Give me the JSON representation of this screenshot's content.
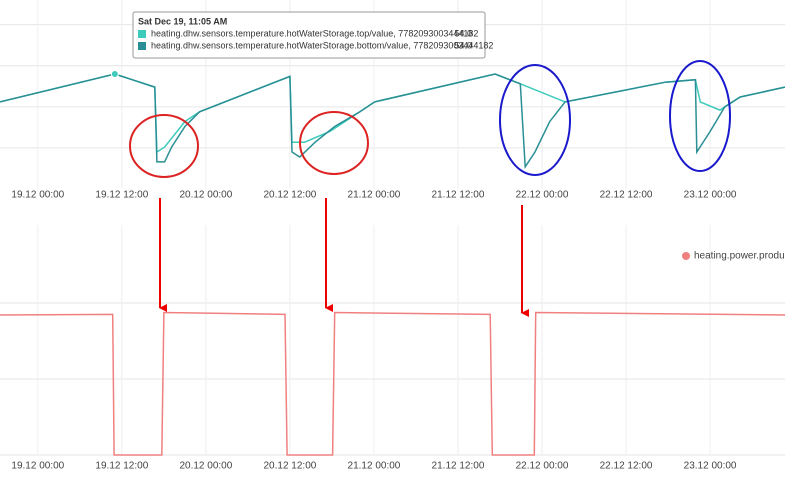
{
  "chart_data": [
    {
      "type": "line",
      "series": [
        {
          "name": "heating.dhw.sensors.temperature.hotWaterStorage.top/value, 7782093003444182",
          "color": "#3ccbbb",
          "x": [
            -5.4,
            11.0,
            16.7,
            17.0,
            18.1,
            21.0,
            23.1,
            36.0,
            36.3,
            38.1,
            41.7,
            46.0,
            48.1,
            65.3,
            68.9,
            75.3,
            89.6,
            93.9,
            94.6,
            97.4,
            100.3,
            106.7
          ],
          "values": [
            50.6,
            54,
            52.4,
            44.5,
            45.1,
            48.2,
            49.4,
            53.7,
            45.7,
            45.7,
            47,
            49.4,
            50.6,
            54,
            52.8,
            50.6,
            53,
            53.3,
            50.6,
            49.6,
            51.2,
            52.4
          ]
        },
        {
          "name": "heating.dhw.sensors.temperature.hotWaterStorage.bottom/value, 7782093003444182",
          "color": "#2a8f94",
          "x": [
            -5.4,
            11.0,
            16.7,
            17.0,
            18.1,
            19.1,
            21.0,
            23.1,
            36.0,
            36.3,
            37.4,
            39.6,
            42.4,
            46.0,
            48.1,
            65.3,
            68.9,
            69.6,
            71.0,
            73.1,
            75.3,
            89.6,
            93.9,
            94.1,
            96.0,
            98.1,
            100.3,
            106.7
          ],
          "values": [
            50.6,
            54,
            52.4,
            43.3,
            43.3,
            45.1,
            47.6,
            49.4,
            53.7,
            44.5,
            43.9,
            45.7,
            47.6,
            49.4,
            50.6,
            54,
            52.8,
            42.7,
            44.5,
            48.2,
            50.6,
            53,
            53.3,
            44.5,
            47,
            50,
            51.2,
            52.4
          ]
        }
      ],
      "xlim": [
        -5.4,
        106.7
      ],
      "xticks": [
        {
          "value": 0,
          "label": "19.12 00:00"
        },
        {
          "value": 12,
          "label": "19.12 12:00"
        },
        {
          "value": 24,
          "label": "20.12 00:00"
        },
        {
          "value": 36,
          "label": "20.12 12:00"
        },
        {
          "value": 48,
          "label": "21.12 00:00"
        },
        {
          "value": 60,
          "label": "21.12 12:00"
        },
        {
          "value": 72,
          "label": "22.12 00:00"
        },
        {
          "value": 84,
          "label": "22.12 12:00"
        },
        {
          "value": 96,
          "label": "23.12 00:00"
        }
      ],
      "ylim": [
        40,
        63
      ],
      "yticks": [
        45,
        50,
        55,
        60
      ],
      "grid": true,
      "tooltip": {
        "title": "Sat Dec 19, 11:05 AM",
        "values": [
          54,
          54
        ],
        "value_labels": [
          "54.0",
          "54.0"
        ]
      }
    },
    {
      "type": "line",
      "series": [
        {
          "name": "heating.power.produc...",
          "color": "#f08080",
          "x": [
            -5.4,
            10.7,
            10.9,
            17.7,
            18.0,
            35.3,
            35.6,
            42.1,
            42.4,
            64.6,
            64.9,
            70.9,
            71.1,
            106.7
          ],
          "values": [
            73.7,
            74,
            0,
            0,
            75,
            74,
            0,
            0,
            75,
            74,
            0,
            0,
            75,
            73.7
          ]
        }
      ],
      "xlim": [
        -5.4,
        106.7
      ],
      "xticks": [
        {
          "value": 0,
          "label": "19.12 00:00"
        },
        {
          "value": 12,
          "label": "19.12 12:00"
        },
        {
          "value": 24,
          "label": "20.12 00:00"
        },
        {
          "value": 36,
          "label": "20.12 12:00"
        },
        {
          "value": 48,
          "label": "21.12 00:00"
        },
        {
          "value": 60,
          "label": "21.12 12:00"
        },
        {
          "value": 72,
          "label": "22.12 00:00"
        },
        {
          "value": 84,
          "label": "22.12 12:00"
        },
        {
          "value": 96,
          "label": "23.12 00:00"
        }
      ],
      "ylim": [
        0,
        100
      ],
      "yticks": [
        0,
        40,
        80
      ],
      "grid": true
    }
  ]
}
